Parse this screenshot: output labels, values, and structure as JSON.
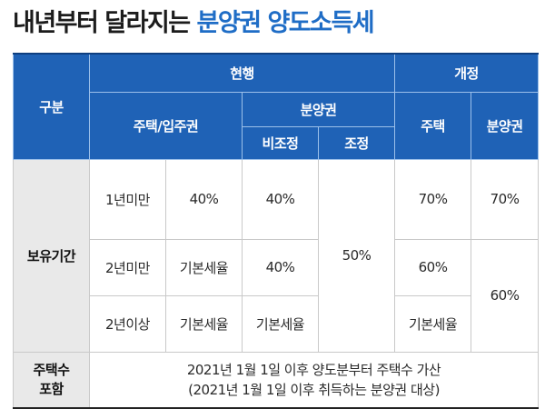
{
  "title": {
    "main": "내년부터 달라지는",
    "highlight": "분양권 양도소득세"
  },
  "table": {
    "col_category": "구분",
    "col_current": "현행",
    "col_revised": "개정",
    "col_house_right": "주택/입주권",
    "col_presale": "분양권",
    "col_non_adjusted": "비조정",
    "col_adjusted": "조정",
    "col_revised_house": "주택",
    "col_revised_presale": "분양권",
    "row_holding": "보유기간",
    "rows": [
      {
        "period": "1년미만",
        "house_right": "40%",
        "non_adjusted": "40%",
        "revised_house": "70%",
        "revised_presale": "70%"
      },
      {
        "period": "2년미만",
        "house_right": "기본세율",
        "non_adjusted": "40%",
        "revised_house": "60%"
      },
      {
        "period": "2년이상",
        "house_right": "기본세율",
        "non_adjusted": "기본세율",
        "revised_house": "기본세율"
      }
    ],
    "adjusted_all": "50%",
    "revised_presale_2yr": "60%",
    "footer_label_1": "주택수",
    "footer_label_2": "포함",
    "footer_text_1": "2021년 1월 1일 이후 양도분부터 주택수 가산",
    "footer_text_2": "(2021년 1월 1일 이후 취득하는 분양권 대상)"
  }
}
